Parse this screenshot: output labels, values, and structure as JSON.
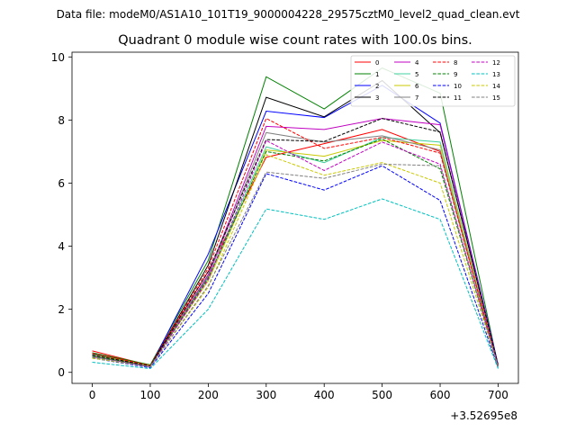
{
  "header": {
    "file_label": "Data file: modeM0/AS1A10_101T19_9000004228_29575cztM0_level2_quad_clean.evt"
  },
  "chart_data": {
    "type": "line",
    "title": "Quadrant 0 module wise count rates with 100.0s bins.",
    "xlabel": "",
    "ylabel": "",
    "x_offset_label": "+3.52695e8",
    "x": [
      0,
      100,
      200,
      300,
      400,
      500,
      600,
      700
    ],
    "xlim": [
      -35,
      735
    ],
    "ylim": [
      -0.35,
      10.15
    ],
    "x_ticks": [
      "0",
      "100",
      "200",
      "300",
      "400",
      "500",
      "600",
      "700"
    ],
    "y_ticks": [
      "0",
      "2",
      "4",
      "6",
      "8",
      "10"
    ],
    "grid": false,
    "legend_position": "top-right",
    "legend_columns": 4,
    "series": [
      {
        "name": "0",
        "color": "#ff0000",
        "dash": "solid",
        "values": [
          0.68,
          0.22,
          3.2,
          6.82,
          7.25,
          7.7,
          7.0,
          0.18
        ]
      },
      {
        "name": "1",
        "color": "#008000",
        "dash": "solid",
        "values": [
          0.62,
          0.24,
          3.55,
          9.37,
          8.35,
          9.65,
          8.85,
          0.2
        ]
      },
      {
        "name": "2",
        "color": "#0000ff",
        "dash": "solid",
        "values": [
          0.55,
          0.18,
          3.75,
          8.28,
          8.08,
          9.1,
          7.9,
          0.25
        ]
      },
      {
        "name": "3",
        "color": "#000000",
        "dash": "solid",
        "values": [
          0.6,
          0.2,
          3.4,
          8.72,
          8.1,
          9.25,
          7.6,
          0.22
        ]
      },
      {
        "name": "4",
        "color": "#c000c0",
        "dash": "solid",
        "values": [
          0.5,
          0.18,
          3.1,
          7.8,
          7.7,
          8.05,
          7.85,
          0.2
        ]
      },
      {
        "name": "5",
        "color": "#40d0a0",
        "dash": "solid",
        "values": [
          0.58,
          0.2,
          3.0,
          7.15,
          6.65,
          7.45,
          7.3,
          0.18
        ]
      },
      {
        "name": "6",
        "color": "#c8c800",
        "dash": "solid",
        "values": [
          0.55,
          0.22,
          2.9,
          7.05,
          6.85,
          7.35,
          7.2,
          0.2
        ]
      },
      {
        "name": "7",
        "color": "#808080",
        "dash": "solid",
        "values": [
          0.52,
          0.2,
          3.05,
          7.6,
          7.3,
          7.5,
          7.05,
          0.18
        ]
      },
      {
        "name": "8",
        "color": "#ff0000",
        "dash": "dashed",
        "values": [
          0.6,
          0.22,
          3.3,
          8.05,
          7.1,
          7.45,
          6.95,
          0.2
        ]
      },
      {
        "name": "9",
        "color": "#008000",
        "dash": "dashed",
        "values": [
          0.5,
          0.2,
          3.0,
          7.0,
          6.7,
          7.4,
          6.45,
          0.18
        ]
      },
      {
        "name": "10",
        "color": "#0000ff",
        "dash": "dashed",
        "values": [
          0.45,
          0.15,
          2.5,
          6.3,
          5.78,
          6.55,
          5.45,
          0.15
        ]
      },
      {
        "name": "11",
        "color": "#000000",
        "dash": "dashed",
        "values": [
          0.55,
          0.2,
          3.2,
          7.38,
          7.32,
          8.05,
          7.62,
          0.22
        ]
      },
      {
        "name": "12",
        "color": "#c000c0",
        "dash": "dashed",
        "values": [
          0.48,
          0.18,
          2.95,
          7.35,
          6.4,
          7.3,
          6.6,
          0.18
        ]
      },
      {
        "name": "13",
        "color": "#00c0c0",
        "dash": "dashed",
        "values": [
          0.32,
          0.12,
          2.0,
          5.18,
          4.85,
          5.5,
          4.85,
          0.12
        ]
      },
      {
        "name": "14",
        "color": "#c8c800",
        "dash": "dashed",
        "values": [
          0.45,
          0.18,
          2.7,
          6.9,
          6.25,
          6.65,
          6.0,
          0.18
        ]
      },
      {
        "name": "15",
        "color": "#808080",
        "dash": "dashed",
        "values": [
          0.48,
          0.18,
          2.75,
          6.35,
          6.15,
          6.6,
          6.55,
          0.18
        ]
      }
    ]
  }
}
